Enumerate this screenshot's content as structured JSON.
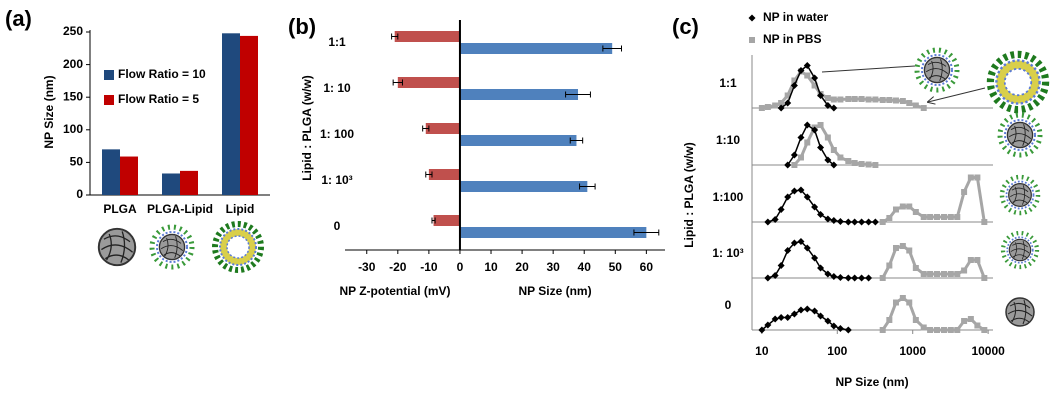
{
  "chart_data": [
    {
      "type": "bar",
      "label": "(a)",
      "ylabel": "NP Size (nm)",
      "categories": [
        "PLGA",
        "PLGA-Lipid",
        "Lipid"
      ],
      "series": [
        {
          "name": "Flow Ratio = 10",
          "color": "#1f497d",
          "values": [
            70,
            33,
            248
          ]
        },
        {
          "name": "Flow Ratio = 5",
          "color": "#c00000",
          "values": [
            59,
            37,
            244
          ]
        }
      ],
      "ylim": [
        0,
        250
      ],
      "yticks": [
        0,
        50,
        100,
        150,
        200,
        250
      ],
      "legend": "upper left"
    },
    {
      "type": "barh",
      "label": "(b)",
      "ylabel": "Lipid : PLGA (w/w)",
      "categories": [
        "1:1",
        "1: 10",
        "1: 100",
        "1: 10³",
        "0"
      ],
      "xlabels": [
        "NP Z-potential  (mV)",
        "NP Size (nm)"
      ],
      "series": [
        {
          "color": "#c0504d",
          "values": [
            -21,
            -20,
            -11,
            -10,
            -8.5
          ],
          "errors": [
            1,
            1.5,
            1,
            1,
            0.5
          ]
        },
        {
          "color": "#4f81bd",
          "values": [
            49,
            38,
            37.5,
            41,
            60
          ],
          "errors": [
            3,
            4,
            2,
            2.5,
            4
          ]
        }
      ],
      "xlim": [
        -37,
        66
      ],
      "xticks": [
        -30,
        -20,
        -10,
        0,
        10,
        20,
        30,
        40,
        50,
        60
      ]
    },
    {
      "type": "line",
      "label": "(c)",
      "ylabel": "Lipid : PLGA (w/w)",
      "xlabel": "NP Size (nm)",
      "xscale": "log",
      "xlim": [
        7.4,
        11600
      ],
      "xticks": [
        10,
        100,
        1000,
        10000
      ],
      "ylim": [
        0,
        100
      ],
      "series": [
        {
          "name": "NP in water",
          "color": "#000000",
          "marker": "diamond"
        },
        {
          "name": "NP in PBS",
          "color": "#a6a6a6",
          "marker": "square"
        }
      ],
      "x": [
        10,
        12,
        15,
        18,
        22,
        27,
        33,
        40,
        50,
        60,
        75,
        90,
        110,
        140,
        170,
        210,
        260,
        320,
        400,
        490,
        600,
        740,
        900,
        1100,
        1400,
        1700,
        2100,
        2600,
        3200,
        3900,
        4800,
        5900,
        7200,
        8900
      ],
      "rows": [
        {
          "label": "1:1",
          "values": [
            [
              null,
              null,
              null,
              0,
              10,
              45,
              75,
              85,
              60,
              25,
              5,
              0,
              null,
              null,
              null,
              null,
              null,
              null,
              null,
              null,
              null,
              null,
              null,
              null,
              null,
              null,
              null,
              null,
              null,
              null,
              null,
              null,
              null,
              null
            ],
            [
              0,
              2,
              5,
              10,
              25,
              55,
              73,
              65,
              45,
              28,
              20,
              17,
              17,
              18,
              18,
              18,
              17,
              17,
              16,
              16,
              15,
              14,
              10,
              5,
              0,
              null,
              null,
              null,
              null,
              null,
              null,
              null,
              null,
              null
            ]
          ]
        },
        {
          "label": "1:10",
          "values": [
            [
              null,
              null,
              null,
              null,
              0,
              20,
              55,
              80,
              70,
              35,
              10,
              0,
              null,
              null,
              null,
              null,
              null,
              null,
              null,
              null,
              null,
              null,
              null,
              null,
              null,
              null,
              null,
              null,
              null,
              null,
              null,
              null,
              null,
              null
            ],
            [
              null,
              null,
              null,
              null,
              null,
              0,
              15,
              45,
              75,
              80,
              55,
              30,
              15,
              8,
              4,
              2,
              1,
              0,
              null,
              null,
              null,
              null,
              null,
              null,
              null,
              null,
              null,
              null,
              null,
              null,
              null,
              null,
              null,
              null
            ]
          ]
        },
        {
          "label": "1:100",
          "values": [
            [
              null,
              0,
              5,
              25,
              50,
              62,
              64,
              50,
              30,
              15,
              6,
              3,
              1,
              0,
              0,
              0,
              0,
              0,
              null,
              null,
              null,
              null,
              null,
              null,
              null,
              null,
              null,
              null,
              null,
              null,
              null,
              null,
              null,
              null
            ],
            [
              null,
              null,
              null,
              null,
              null,
              null,
              null,
              null,
              null,
              null,
              null,
              null,
              null,
              null,
              null,
              null,
              null,
              null,
              0,
              8,
              25,
              31,
              31,
              20,
              10,
              10,
              10,
              10,
              10,
              10,
              60,
              89,
              89,
              0
            ]
          ]
        },
        {
          "label": "1: 10³",
          "values": [
            [
              null,
              0,
              5,
              25,
              55,
              70,
              73,
              60,
              40,
              20,
              8,
              3,
              1,
              0,
              0,
              0,
              0,
              null,
              null,
              null,
              null,
              null,
              null,
              null,
              null,
              null,
              null,
              null,
              null,
              null,
              null,
              null,
              null,
              null
            ],
            [
              null,
              null,
              null,
              null,
              null,
              null,
              null,
              null,
              null,
              null,
              null,
              null,
              null,
              null,
              null,
              null,
              null,
              null,
              0,
              25,
              60,
              64,
              55,
              20,
              8,
              8,
              8,
              8,
              8,
              8,
              15,
              36,
              36,
              0
            ]
          ]
        },
        {
          "label": "0",
          "values": [
            [
              0,
              10,
              22,
              25,
              25,
              32,
              40,
              42,
              38,
              28,
              18,
              8,
              3,
              0,
              null,
              null,
              null,
              null,
              null,
              null,
              null,
              null,
              null,
              null,
              null,
              null,
              null,
              null,
              null,
              null,
              null,
              null,
              null,
              null
            ],
            [
              null,
              null,
              null,
              null,
              null,
              null,
              null,
              null,
              null,
              null,
              null,
              null,
              null,
              null,
              null,
              null,
              null,
              null,
              0,
              20,
              55,
              64,
              55,
              20,
              5,
              0,
              0,
              0,
              0,
              0,
              18,
              22,
              9,
              0
            ]
          ]
        }
      ]
    }
  ]
}
